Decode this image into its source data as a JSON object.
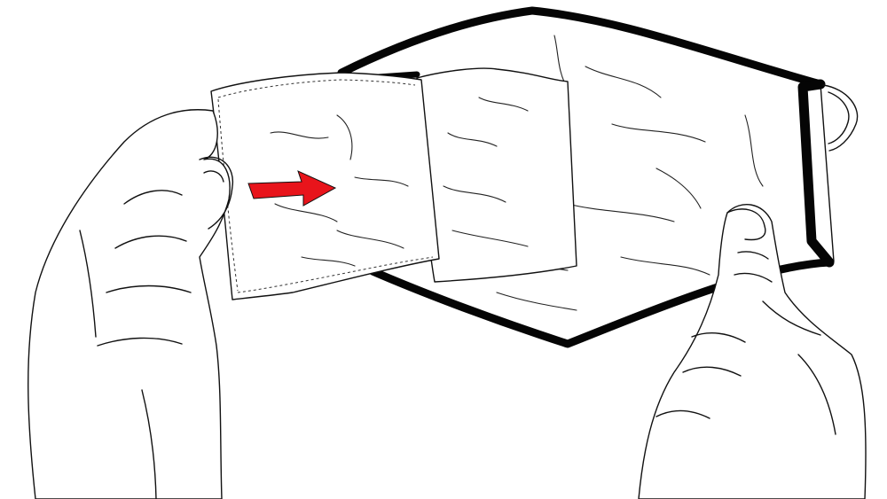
{
  "colors": {
    "background": "#ffffff",
    "line": "#111111",
    "binding": "#050505",
    "arrow": "#e8141b"
  },
  "icons": {
    "direction_arrow": "arrow-right-icon"
  }
}
